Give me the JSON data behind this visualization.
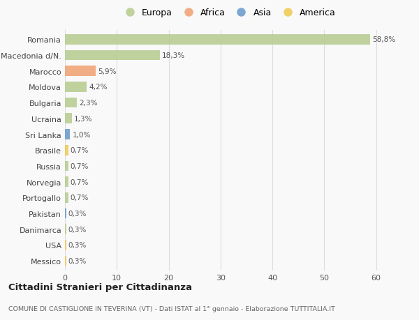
{
  "countries": [
    "Romania",
    "Macedonia d/N.",
    "Marocco",
    "Moldova",
    "Bulgaria",
    "Ucraina",
    "Sri Lanka",
    "Brasile",
    "Russia",
    "Norvegia",
    "Portogallo",
    "Pakistan",
    "Danimarca",
    "USA",
    "Messico"
  ],
  "values": [
    58.8,
    18.3,
    5.9,
    4.2,
    2.3,
    1.3,
    1.0,
    0.7,
    0.7,
    0.7,
    0.7,
    0.3,
    0.3,
    0.3,
    0.3
  ],
  "labels": [
    "58,8%",
    "18,3%",
    "5,9%",
    "4,2%",
    "2,3%",
    "1,3%",
    "1,0%",
    "0,7%",
    "0,7%",
    "0,7%",
    "0,7%",
    "0,3%",
    "0,3%",
    "0,3%",
    "0,3%"
  ],
  "continents": [
    "Europa",
    "Europa",
    "Africa",
    "Europa",
    "Europa",
    "Europa",
    "Asia",
    "America",
    "Europa",
    "Europa",
    "Europa",
    "Asia",
    "Europa",
    "America",
    "America"
  ],
  "colors": {
    "Europa": "#b5cc8e",
    "Africa": "#f0a070",
    "Asia": "#6699cc",
    "America": "#f0c850"
  },
  "xlim": [
    0,
    63
  ],
  "xticks": [
    0,
    10,
    20,
    30,
    40,
    50,
    60
  ],
  "title": "Cittadini Stranieri per Cittadinanza",
  "subtitle": "COMUNE DI CASTIGLIONE IN TEVERINA (VT) - Dati ISTAT al 1° gennaio - Elaborazione TUTTITALIA.IT",
  "background_color": "#f9f9f9",
  "grid_color": "#dddddd",
  "bar_height": 0.65
}
